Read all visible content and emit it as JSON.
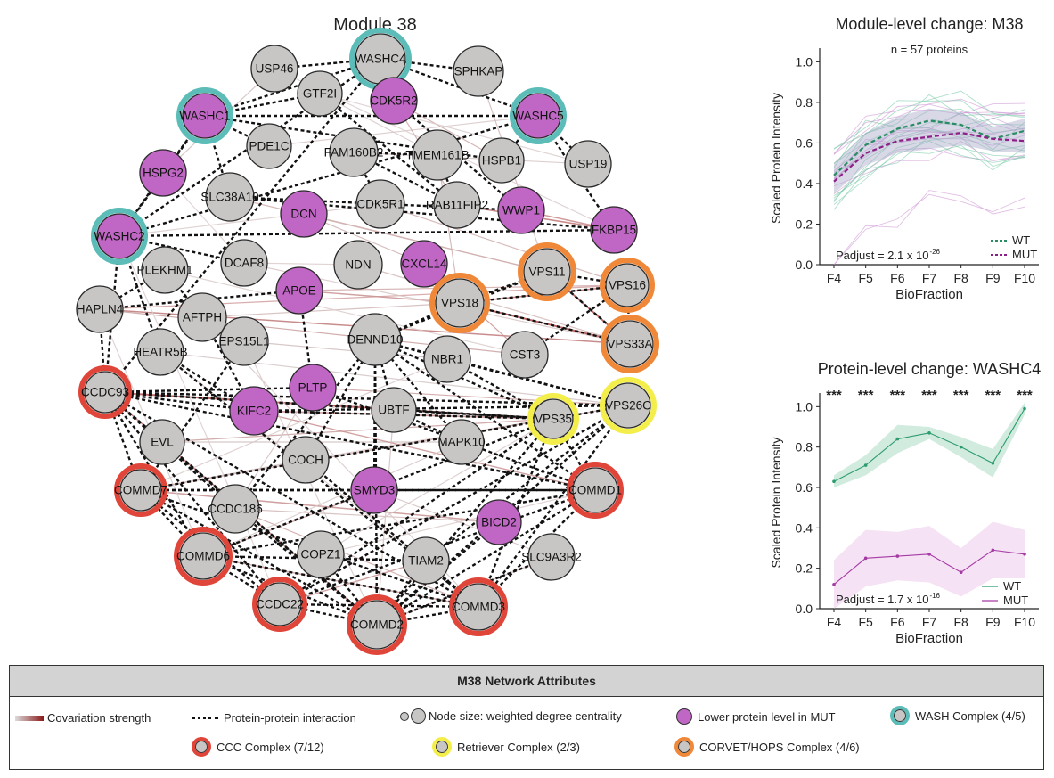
{
  "network": {
    "title": "Module 38",
    "nodes": [
      {
        "id": "WASHC4",
        "label": "WASHC4",
        "color": "#c8c6c4",
        "ring": "wash"
      },
      {
        "id": "USP46",
        "label": "USP46",
        "color": "#c8c6c4",
        "ring": ""
      },
      {
        "id": "SPHKAP",
        "label": "SPHKAP",
        "color": "#c8c6c4",
        "ring": ""
      },
      {
        "id": "GTF2I",
        "label": "GTF2I",
        "color": "#c8c6c4",
        "ring": ""
      },
      {
        "id": "CDK5R2",
        "label": "CDK5R2",
        "color": "#c066c4",
        "ring": ""
      },
      {
        "id": "WASHC1",
        "label": "WASHC1",
        "color": "#c066c4",
        "ring": "wash"
      },
      {
        "id": "WASHC5",
        "label": "WASHC5",
        "color": "#c066c4",
        "ring": "wash"
      },
      {
        "id": "PDE1C",
        "label": "PDE1C",
        "color": "#c8c6c4",
        "ring": ""
      },
      {
        "id": "FAM160B2",
        "label": "FAM160B2",
        "color": "#c8c6c4",
        "ring": ""
      },
      {
        "id": "TMEM161B",
        "label": "TMEM161B",
        "color": "#c8c6c4",
        "ring": ""
      },
      {
        "id": "HSPB1",
        "label": "HSPB1",
        "color": "#c8c6c4",
        "ring": ""
      },
      {
        "id": "USP19",
        "label": "USP19",
        "color": "#c8c6c4",
        "ring": ""
      },
      {
        "id": "HSPG2",
        "label": "HSPG2",
        "color": "#c066c4",
        "ring": ""
      },
      {
        "id": "SLC38A10",
        "label": "SLC38A10",
        "color": "#c8c6c4",
        "ring": ""
      },
      {
        "id": "CDK5R1",
        "label": "CDK5R1",
        "color": "#c8c6c4",
        "ring": ""
      },
      {
        "id": "RAB11FIP2",
        "label": "RAB11FIP2",
        "color": "#c8c6c4",
        "ring": ""
      },
      {
        "id": "WWP1",
        "label": "WWP1",
        "color": "#c066c4",
        "ring": ""
      },
      {
        "id": "DCN",
        "label": "DCN",
        "color": "#c066c4",
        "ring": ""
      },
      {
        "id": "FKBP15",
        "label": "FKBP15",
        "color": "#c066c4",
        "ring": ""
      },
      {
        "id": "WASHC2",
        "label": "WASHC2",
        "color": "#c066c4",
        "ring": "wash"
      },
      {
        "id": "PLEKHM1",
        "label": "PLEKHM1",
        "color": "#c8c6c4",
        "ring": ""
      },
      {
        "id": "DCAF8",
        "label": "DCAF8",
        "color": "#c8c6c4",
        "ring": ""
      },
      {
        "id": "NDN",
        "label": "NDN",
        "color": "#c8c6c4",
        "ring": ""
      },
      {
        "id": "CXCL14",
        "label": "CXCL14",
        "color": "#c066c4",
        "ring": ""
      },
      {
        "id": "VPS11",
        "label": "VPS11",
        "color": "#c8c6c4",
        "ring": "corvet"
      },
      {
        "id": "VPS16",
        "label": "VPS16",
        "color": "#c8c6c4",
        "ring": "corvet"
      },
      {
        "id": "APOE",
        "label": "APOE",
        "color": "#c066c4",
        "ring": ""
      },
      {
        "id": "VPS18",
        "label": "VPS18",
        "color": "#c8c6c4",
        "ring": "corvet"
      },
      {
        "id": "HAPLN4",
        "label": "HAPLN4",
        "color": "#c8c6c4",
        "ring": ""
      },
      {
        "id": "AFTPH",
        "label": "AFTPH",
        "color": "#c8c6c4",
        "ring": ""
      },
      {
        "id": "EPS15L1",
        "label": "EPS15L1",
        "color": "#c8c6c4",
        "ring": ""
      },
      {
        "id": "DENND10",
        "label": "DENND10",
        "color": "#c8c6c4",
        "ring": ""
      },
      {
        "id": "VPS33A",
        "label": "VPS33A",
        "color": "#c8c6c4",
        "ring": "corvet"
      },
      {
        "id": "HEATR5B",
        "label": "HEATR5B",
        "color": "#c8c6c4",
        "ring": ""
      },
      {
        "id": "NBR1",
        "label": "NBR1",
        "color": "#c8c6c4",
        "ring": ""
      },
      {
        "id": "CST3",
        "label": "CST3",
        "color": "#c8c6c4",
        "ring": ""
      },
      {
        "id": "CCDC93",
        "label": "CCDC93",
        "color": "#c8c6c4",
        "ring": "ccc"
      },
      {
        "id": "PLTP",
        "label": "PLTP",
        "color": "#c066c4",
        "ring": ""
      },
      {
        "id": "VPS26C",
        "label": "VPS26C",
        "color": "#c8c6c4",
        "ring": "retriever"
      },
      {
        "id": "KIFC2",
        "label": "KIFC2",
        "color": "#c066c4",
        "ring": ""
      },
      {
        "id": "UBTF",
        "label": "UBTF",
        "color": "#c8c6c4",
        "ring": ""
      },
      {
        "id": "VPS35",
        "label": "VPS35",
        "color": "#c8c6c4",
        "ring": "retriever"
      },
      {
        "id": "EVL",
        "label": "EVL",
        "color": "#c8c6c4",
        "ring": ""
      },
      {
        "id": "MAPK10",
        "label": "MAPK10",
        "color": "#c8c6c4",
        "ring": ""
      },
      {
        "id": "COCH",
        "label": "COCH",
        "color": "#c8c6c4",
        "ring": ""
      },
      {
        "id": "COMMD7",
        "label": "COMMD7",
        "color": "#c8c6c4",
        "ring": "ccc"
      },
      {
        "id": "CCDC186",
        "label": "CCDC186",
        "color": "#c8c6c4",
        "ring": ""
      },
      {
        "id": "SMYD3",
        "label": "SMYD3",
        "color": "#c066c4",
        "ring": ""
      },
      {
        "id": "COMMD1",
        "label": "COMMD1",
        "color": "#c8c6c4",
        "ring": "ccc"
      },
      {
        "id": "BICD2",
        "label": "BICD2",
        "color": "#c066c4",
        "ring": ""
      },
      {
        "id": "COPZ1",
        "label": "COPZ1",
        "color": "#c8c6c4",
        "ring": ""
      },
      {
        "id": "TIAM2",
        "label": "TIAM2",
        "color": "#c8c6c4",
        "ring": ""
      },
      {
        "id": "COMMD6",
        "label": "COMMD6",
        "color": "#c8c6c4",
        "ring": "ccc"
      },
      {
        "id": "SLC9A3R2",
        "label": "SLC9A3R2",
        "color": "#c8c6c4",
        "ring": ""
      },
      {
        "id": "CCDC22",
        "label": "CCDC22",
        "color": "#c8c6c4",
        "ring": "ccc"
      },
      {
        "id": "COMMD3",
        "label": "COMMD3",
        "color": "#c8c6c4",
        "ring": "ccc"
      },
      {
        "id": "COMMD2",
        "label": "COMMD2",
        "color": "#c8c6c4",
        "ring": "ccc"
      }
    ],
    "ring_colors": {
      "wash": "#5bbcb8",
      "ccc": "#e0453a",
      "retriever": "#f3ee4a",
      "corvet": "#f0883a"
    }
  },
  "chart_data": [
    {
      "type": "line",
      "title": "Module-level change: M38",
      "annotation": "n = 57 proteins",
      "stat_label": "Padjust = 2.1 x 10",
      "stat_exp": "-26",
      "xlabel": "BioFraction",
      "ylabel": "Scaled Protein Intensity",
      "categories": [
        "F4",
        "F5",
        "F6",
        "F7",
        "F8",
        "F9",
        "F10"
      ],
      "ylim": [
        0,
        1.05
      ],
      "yticks": [
        "0.0",
        "0.2",
        "0.4",
        "0.6",
        "0.8",
        "1.0"
      ],
      "legend_position": "bottom-right",
      "series": [
        {
          "name": "WT",
          "color": "#2a8c63",
          "style": "dashed",
          "values": [
            0.44,
            0.59,
            0.67,
            0.71,
            0.69,
            0.62,
            0.66
          ]
        },
        {
          "name": "MUT",
          "color": "#8c1f86",
          "style": "dashed",
          "values": [
            0.41,
            0.55,
            0.61,
            0.63,
            0.65,
            0.62,
            0.61
          ]
        }
      ]
    },
    {
      "type": "line",
      "title": "Protein-level change: WASHC4",
      "significance": [
        "***",
        "***",
        "***",
        "***",
        "***",
        "***",
        "***"
      ],
      "stat_label": "Padjust = 1.7 x 10",
      "stat_exp": "-16",
      "xlabel": "BioFraction",
      "ylabel": "Scaled Protein Intensity",
      "categories": [
        "F4",
        "F5",
        "F6",
        "F7",
        "F8",
        "F9",
        "F10"
      ],
      "ylim": [
        0,
        1.05
      ],
      "yticks": [
        "0.0",
        "0.2",
        "0.4",
        "0.6",
        "0.8",
        "1.0"
      ],
      "legend_position": "bottom-right",
      "series": [
        {
          "name": "WT",
          "color": "#2a9c6e",
          "style": "solid",
          "values": [
            0.63,
            0.71,
            0.84,
            0.87,
            0.8,
            0.72,
            0.99
          ]
        },
        {
          "name": "MUT",
          "color": "#a53aa4",
          "style": "solid",
          "values": [
            0.12,
            0.25,
            0.26,
            0.27,
            0.18,
            0.29,
            0.27
          ]
        }
      ]
    }
  ],
  "legend": {
    "title": "M38 Network Attributes",
    "covariation": "Covariation strength",
    "ppi": "Protein-protein interaction",
    "node_size": "Node size: weighted degree centrality",
    "lower_mut": "Lower protein level in MUT",
    "wash": "WASH Complex (4/5)",
    "ccc": "CCC Complex (7/12)",
    "retriever": "Retriever Complex (2/3)",
    "corvet": "CORVET/HOPS Complex (4/6)"
  }
}
